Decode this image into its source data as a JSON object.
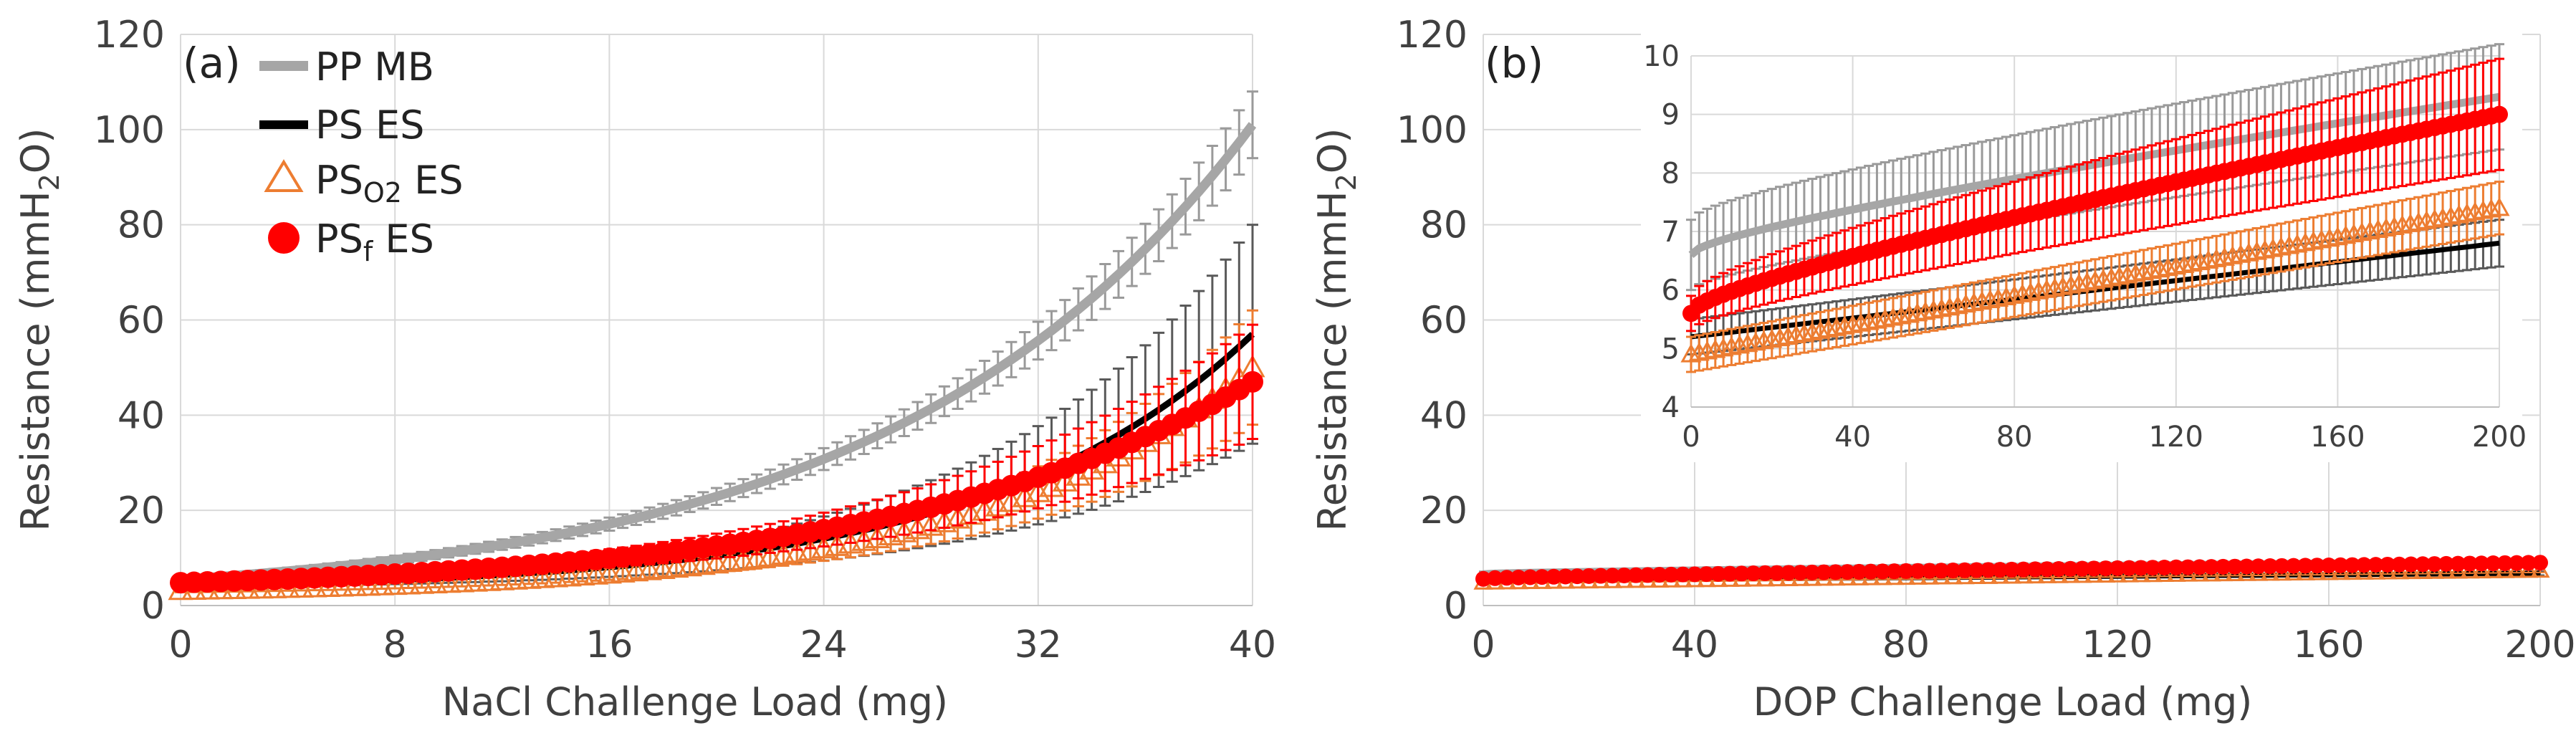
{
  "colors": {
    "PP MB": "#a6a6a6",
    "PS ES": "#000000",
    "PSO2 ES": "#ed7d31",
    "PSf ES": "#ff0000",
    "error_PP": "#9a9a9a",
    "error_PS": "#595959",
    "error_PSO2": "#ed7d31",
    "error_PSf": "#ff0000"
  },
  "legend": {
    "pp": {
      "text": "PP MB"
    },
    "ps": {
      "text": "PS ES"
    },
    "pso2": {
      "main": "PS",
      "sub": "O2",
      "tail": " ES"
    },
    "psf": {
      "main": "PS",
      "sub": "f",
      "tail": " ES"
    }
  },
  "chart_data": [
    {
      "id": "a",
      "type": "line",
      "panel_label": "(a)",
      "xlabel": "NaCl Challenge Load (mg)",
      "ylabel": {
        "main": "Resistance (mmH",
        "sub": "2",
        "tail": "O)"
      },
      "xlim": [
        0,
        40
      ],
      "ylim": [
        0,
        120
      ],
      "x_ticks": [
        "0",
        "8",
        "16",
        "24",
        "32",
        "40"
      ],
      "y_ticks": [
        "0",
        "20",
        "40",
        "60",
        "80",
        "100",
        "120"
      ],
      "series": [
        {
          "name": "PP MB",
          "style": "line",
          "x_end": 40,
          "start": 5.5,
          "end": 101,
          "curve": "exp3",
          "err_start": 0.6,
          "err_end": 7
        },
        {
          "name": "PS ES",
          "style": "line",
          "x_end": 40,
          "start": 4.2,
          "end": 57,
          "curve": "exp4",
          "err_start": 0.4,
          "err_end": 23
        },
        {
          "name": "PSO2 ES",
          "style": "triangle",
          "x_end": 40,
          "start": 3.2,
          "end": 50,
          "curve": "exp4",
          "err_start": 0.4,
          "err_end": 12
        },
        {
          "name": "PSf ES",
          "style": "circle",
          "x_end": 40,
          "start": 4.8,
          "end": 47,
          "curve": "exp3",
          "err_start": 0.5,
          "err_end": 12
        }
      ]
    },
    {
      "id": "b",
      "type": "line",
      "panel_label": "(b)",
      "xlabel": "DOP Challenge Load (mg)",
      "ylabel": {
        "main": "Resistance (mmH",
        "sub": "2",
        "tail": "O)"
      },
      "xlim": [
        0,
        200
      ],
      "ylim": [
        0,
        120
      ],
      "x_ticks": [
        "0",
        "40",
        "80",
        "120",
        "160",
        "200"
      ],
      "y_ticks": [
        "0",
        "20",
        "40",
        "60",
        "80",
        "100",
        "120"
      ],
      "series": [
        {
          "name": "PP MB",
          "style": "line",
          "x_end": 205,
          "start": 6.6,
          "end": 9.3,
          "curve": "sqrt",
          "err_start": 0.6,
          "err_end": 0.9
        },
        {
          "name": "PS ES",
          "style": "line",
          "x_end": 205,
          "start": 5.2,
          "end": 6.8,
          "curve": "linear",
          "err_start": 0.3,
          "err_end": 0.4
        },
        {
          "name": "PSO2 ES",
          "style": "triangle",
          "x_end": 205,
          "start": 4.9,
          "end": 7.4,
          "curve": "linear",
          "err_start": 0.3,
          "err_end": 0.45
        },
        {
          "name": "PSf ES",
          "style": "circle",
          "x_end": 205,
          "start": 5.6,
          "end": 9.0,
          "curve": "sqrt",
          "err_start": 0.3,
          "err_end": 0.95
        }
      ],
      "inset": {
        "xlim": [
          0,
          200
        ],
        "ylim": [
          4,
          10
        ],
        "x_ticks": [
          "0",
          "40",
          "80",
          "120",
          "160",
          "200"
        ],
        "y_ticks": [
          "4",
          "5",
          "6",
          "7",
          "8",
          "9",
          "10"
        ]
      }
    }
  ]
}
